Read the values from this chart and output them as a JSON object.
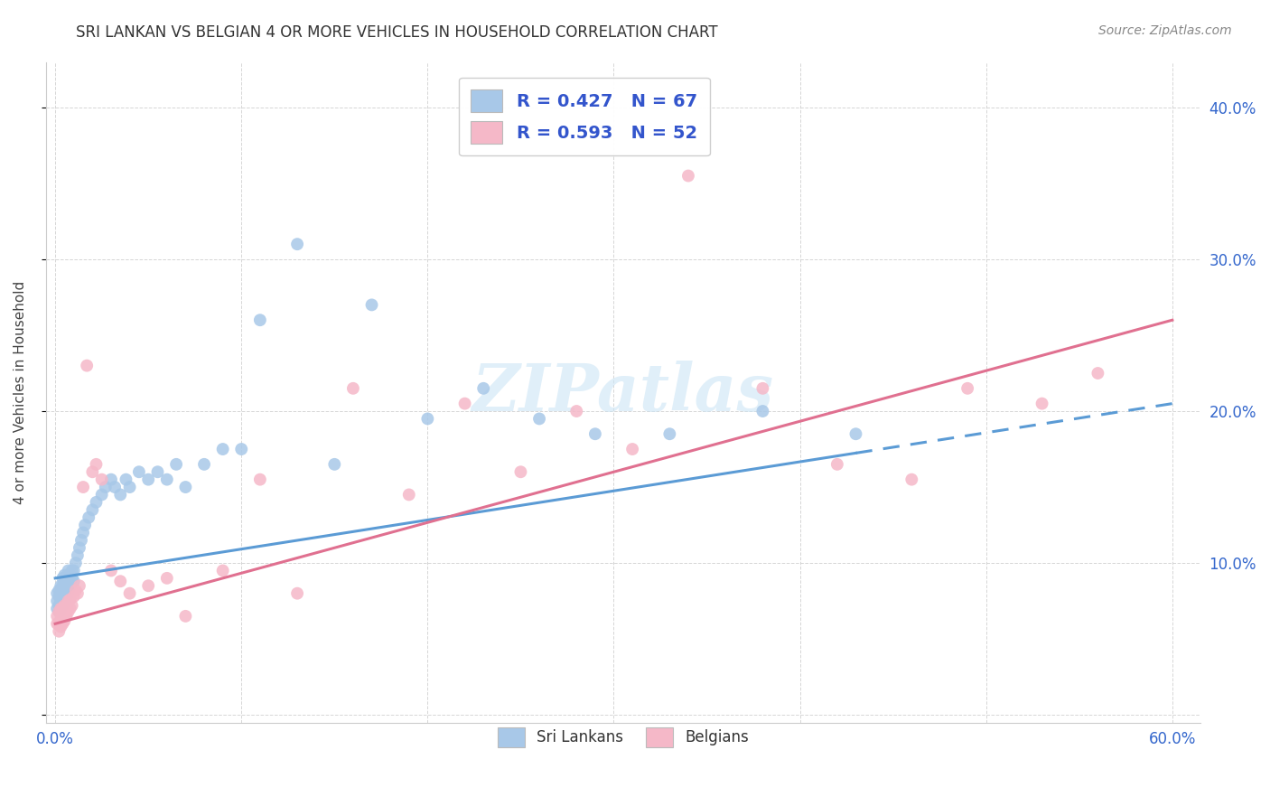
{
  "title": "SRI LANKAN VS BELGIAN 4 OR MORE VEHICLES IN HOUSEHOLD CORRELATION CHART",
  "source": "Source: ZipAtlas.com",
  "ylabel": "4 or more Vehicles in Household",
  "xlim": [
    0.0,
    0.6
  ],
  "ylim": [
    0.0,
    0.42
  ],
  "xticks": [
    0.0,
    0.1,
    0.2,
    0.3,
    0.4,
    0.5,
    0.6
  ],
  "yticks": [
    0.0,
    0.1,
    0.2,
    0.3,
    0.4
  ],
  "xticklabels": [
    "0.0%",
    "",
    "",
    "",
    "",
    "",
    "60.0%"
  ],
  "yticklabels_right": [
    "",
    "10.0%",
    "20.0%",
    "30.0%",
    "40.0%"
  ],
  "sri_lankans_color": "#a8c8e8",
  "belgians_color": "#f5b8c8",
  "sri_lankans_line_color": "#5b9bd5",
  "belgians_line_color": "#e07090",
  "R_sri": 0.427,
  "N_sri": 67,
  "R_bel": 0.593,
  "N_bel": 52,
  "legend_label_sri": "Sri Lankans",
  "legend_label_bel": "Belgians",
  "legend_text_color": "#3355cc",
  "watermark": "ZIPatlas",
  "sri_lankans_x": [
    0.001,
    0.001,
    0.001,
    0.002,
    0.002,
    0.002,
    0.002,
    0.003,
    0.003,
    0.003,
    0.003,
    0.004,
    0.004,
    0.004,
    0.004,
    0.005,
    0.005,
    0.005,
    0.005,
    0.006,
    0.006,
    0.006,
    0.007,
    0.007,
    0.007,
    0.008,
    0.008,
    0.009,
    0.009,
    0.01,
    0.01,
    0.011,
    0.012,
    0.013,
    0.014,
    0.015,
    0.016,
    0.018,
    0.02,
    0.022,
    0.025,
    0.027,
    0.03,
    0.032,
    0.035,
    0.038,
    0.04,
    0.045,
    0.05,
    0.055,
    0.06,
    0.065,
    0.07,
    0.08,
    0.09,
    0.1,
    0.11,
    0.13,
    0.15,
    0.17,
    0.2,
    0.23,
    0.26,
    0.29,
    0.33,
    0.38,
    0.43
  ],
  "sri_lankans_y": [
    0.07,
    0.075,
    0.08,
    0.068,
    0.072,
    0.078,
    0.082,
    0.07,
    0.075,
    0.08,
    0.085,
    0.072,
    0.078,
    0.085,
    0.09,
    0.075,
    0.08,
    0.088,
    0.092,
    0.078,
    0.085,
    0.09,
    0.082,
    0.088,
    0.095,
    0.085,
    0.092,
    0.09,
    0.095,
    0.088,
    0.095,
    0.1,
    0.105,
    0.11,
    0.115,
    0.12,
    0.125,
    0.13,
    0.135,
    0.14,
    0.145,
    0.15,
    0.155,
    0.15,
    0.145,
    0.155,
    0.15,
    0.16,
    0.155,
    0.16,
    0.155,
    0.165,
    0.15,
    0.165,
    0.175,
    0.175,
    0.26,
    0.31,
    0.165,
    0.27,
    0.195,
    0.215,
    0.195,
    0.185,
    0.185,
    0.2,
    0.185
  ],
  "belgians_x": [
    0.001,
    0.001,
    0.002,
    0.002,
    0.002,
    0.003,
    0.003,
    0.003,
    0.004,
    0.004,
    0.004,
    0.005,
    0.005,
    0.005,
    0.006,
    0.006,
    0.007,
    0.007,
    0.008,
    0.008,
    0.009,
    0.01,
    0.011,
    0.012,
    0.013,
    0.015,
    0.017,
    0.02,
    0.022,
    0.025,
    0.03,
    0.035,
    0.04,
    0.05,
    0.06,
    0.07,
    0.09,
    0.11,
    0.13,
    0.16,
    0.19,
    0.22,
    0.25,
    0.28,
    0.31,
    0.34,
    0.38,
    0.42,
    0.46,
    0.49,
    0.53,
    0.56
  ],
  "belgians_y": [
    0.06,
    0.065,
    0.055,
    0.06,
    0.068,
    0.058,
    0.063,
    0.07,
    0.06,
    0.065,
    0.07,
    0.062,
    0.068,
    0.072,
    0.065,
    0.072,
    0.068,
    0.075,
    0.07,
    0.076,
    0.072,
    0.078,
    0.082,
    0.08,
    0.085,
    0.15,
    0.23,
    0.16,
    0.165,
    0.155,
    0.095,
    0.088,
    0.08,
    0.085,
    0.09,
    0.065,
    0.095,
    0.155,
    0.08,
    0.215,
    0.145,
    0.205,
    0.16,
    0.2,
    0.175,
    0.355,
    0.215,
    0.165,
    0.155,
    0.215,
    0.205,
    0.225
  ],
  "sri_line_x_start": 0.0,
  "sri_line_y_start": 0.09,
  "sri_line_x_end": 0.6,
  "sri_line_y_end": 0.205,
  "sri_line_solid_end": 0.43,
  "bel_line_x_start": 0.0,
  "bel_line_y_start": 0.06,
  "bel_line_x_end": 0.6,
  "bel_line_y_end": 0.26
}
